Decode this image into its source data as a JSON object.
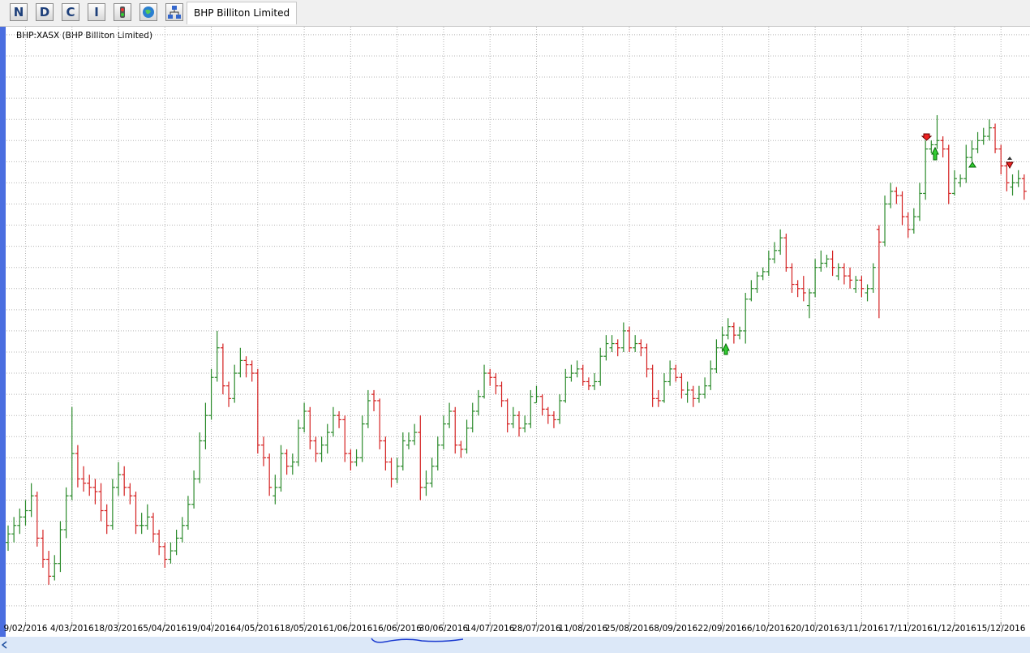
{
  "toolbar": {
    "buttons": [
      "N",
      "D",
      "C",
      "I"
    ],
    "tab": "BHP Billiton Limited"
  },
  "chart_data": {
    "type": "ohlc",
    "title": "BHP:XASX (BHP Billiton Limited)",
    "up_color": "#2a8a2a",
    "down_color": "#d42020",
    "grid": true,
    "ylim": [
      12.96,
      27.19
    ],
    "ygrid": [
      13.5,
      14,
      14.5,
      15,
      15.5,
      16,
      16.5,
      17,
      17.5,
      18,
      18.5,
      19,
      19.5,
      20,
      20.5,
      21,
      21.5,
      22,
      22.5,
      23,
      23.5,
      24,
      24.5,
      25,
      25.5,
      26,
      26.5,
      27
    ],
    "categories": [
      null,
      null,
      null,
      "9/02/2016",
      null,
      null,
      null,
      null,
      null,
      null,
      null,
      "4/03/2016",
      null,
      null,
      null,
      null,
      null,
      null,
      null,
      "18/03/2016",
      null,
      null,
      null,
      null,
      null,
      null,
      null,
      "5/04/2016",
      null,
      null,
      null,
      null,
      null,
      null,
      null,
      "19/04/2016",
      null,
      null,
      null,
      null,
      null,
      null,
      null,
      "4/05/2016",
      null,
      null,
      null,
      null,
      null,
      null,
      null,
      "18/05/2016",
      null,
      null,
      null,
      null,
      null,
      null,
      null,
      "1/06/2016",
      null,
      null,
      null,
      null,
      null,
      null,
      null,
      "16/06/2016",
      null,
      null,
      null,
      null,
      null,
      null,
      null,
      "30/06/2016",
      null,
      null,
      null,
      null,
      null,
      null,
      null,
      "14/07/2016",
      null,
      null,
      null,
      null,
      null,
      null,
      null,
      "28/07/2016",
      null,
      null,
      null,
      null,
      null,
      null,
      null,
      "11/08/2016",
      null,
      null,
      null,
      null,
      null,
      null,
      null,
      "25/08/2016",
      null,
      null,
      null,
      null,
      null,
      null,
      null,
      "8/09/2016",
      null,
      null,
      null,
      null,
      null,
      null,
      null,
      "22/09/2016",
      null,
      null,
      null,
      null,
      null,
      null,
      null,
      "6/10/2016",
      null,
      null,
      null,
      null,
      null,
      null,
      null,
      "20/10/2016",
      null,
      null,
      null,
      null,
      null,
      null,
      null,
      "3/11/2016",
      null,
      null,
      null,
      null,
      null,
      null,
      null,
      "17/11/2016",
      null,
      null,
      null,
      null,
      null,
      null,
      null,
      "1/12/2016",
      null,
      null,
      null,
      null,
      null,
      null,
      null,
      "15/12/2016",
      null,
      null,
      null,
      null
    ],
    "values": [
      [
        15.0,
        15.4,
        14.8,
        15.2
      ],
      [
        15.2,
        15.6,
        15.0,
        15.4
      ],
      [
        15.4,
        15.8,
        15.2,
        15.6
      ],
      [
        15.6,
        16.0,
        15.4,
        15.75
      ],
      [
        15.75,
        16.4,
        15.6,
        16.1
      ],
      [
        16.1,
        16.2,
        14.9,
        15.1
      ],
      [
        15.1,
        15.3,
        14.4,
        14.6
      ],
      [
        14.6,
        14.8,
        14.0,
        14.2
      ],
      [
        14.2,
        14.7,
        14.1,
        14.5
      ],
      [
        14.5,
        15.5,
        14.3,
        15.3
      ],
      [
        15.3,
        16.3,
        15.1,
        16.1
      ],
      [
        16.1,
        18.2,
        16.0,
        17.1
      ],
      [
        17.1,
        17.3,
        16.3,
        16.5
      ],
      [
        16.5,
        16.8,
        16.2,
        16.4
      ],
      [
        16.4,
        16.6,
        16.1,
        16.3
      ],
      [
        16.3,
        16.5,
        15.9,
        16.2
      ],
      [
        16.2,
        16.4,
        15.5,
        15.75
      ],
      [
        15.75,
        15.9,
        15.2,
        15.4
      ],
      [
        15.4,
        16.5,
        15.3,
        16.3
      ],
      [
        16.3,
        16.9,
        16.1,
        16.6
      ],
      [
        16.6,
        16.8,
        16.1,
        16.3
      ],
      [
        16.3,
        16.4,
        15.9,
        16.1
      ],
      [
        16.1,
        16.2,
        15.2,
        15.4
      ],
      [
        15.4,
        15.7,
        15.2,
        15.4
      ],
      [
        15.4,
        15.9,
        15.3,
        15.6
      ],
      [
        15.6,
        15.7,
        15.0,
        15.2
      ],
      [
        15.2,
        15.3,
        14.7,
        14.9
      ],
      [
        14.9,
        15.0,
        14.4,
        14.6
      ],
      [
        14.6,
        15.0,
        14.5,
        14.8
      ],
      [
        14.8,
        15.3,
        14.7,
        15.1
      ],
      [
        15.1,
        15.6,
        15.0,
        15.4
      ],
      [
        15.4,
        16.1,
        15.3,
        15.9
      ],
      [
        15.9,
        16.7,
        15.8,
        16.5
      ],
      [
        16.5,
        17.6,
        16.4,
        17.4
      ],
      [
        17.4,
        18.3,
        17.2,
        18.0
      ],
      [
        18.0,
        19.1,
        17.9,
        18.9
      ],
      [
        18.9,
        20.0,
        18.8,
        19.6
      ],
      [
        19.6,
        19.7,
        18.5,
        18.7
      ],
      [
        18.7,
        18.8,
        18.2,
        18.4
      ],
      [
        18.4,
        19.2,
        18.3,
        19.0
      ],
      [
        19.0,
        19.6,
        18.9,
        19.3
      ],
      [
        19.3,
        19.4,
        18.9,
        19.2
      ],
      [
        19.2,
        19.3,
        18.8,
        19.0
      ],
      [
        19.0,
        19.1,
        17.1,
        17.3
      ],
      [
        17.3,
        17.5,
        16.8,
        17.0
      ],
      [
        17.0,
        17.1,
        16.1,
        16.3
      ],
      [
        16.1,
        16.6,
        15.9,
        16.3
      ],
      [
        16.3,
        17.3,
        16.2,
        17.1
      ],
      [
        17.1,
        17.2,
        16.6,
        16.8
      ],
      [
        16.8,
        17.1,
        16.6,
        16.9
      ],
      [
        16.9,
        17.9,
        16.8,
        17.7
      ],
      [
        17.7,
        18.3,
        17.6,
        18.1
      ],
      [
        18.1,
        18.2,
        17.2,
        17.4
      ],
      [
        17.4,
        17.5,
        16.9,
        17.1
      ],
      [
        17.1,
        17.5,
        16.9,
        17.3
      ],
      [
        17.3,
        17.8,
        17.1,
        17.6
      ],
      [
        17.6,
        18.2,
        17.5,
        18.0
      ],
      [
        18.0,
        18.1,
        17.7,
        17.9
      ],
      [
        17.9,
        18.0,
        16.9,
        17.1
      ],
      [
        17.1,
        17.2,
        16.7,
        16.9
      ],
      [
        16.9,
        17.2,
        16.8,
        17.0
      ],
      [
        17.0,
        18.0,
        16.9,
        17.8
      ],
      [
        17.8,
        18.6,
        17.7,
        18.35
      ],
      [
        18.5,
        18.6,
        18.1,
        18.35
      ],
      [
        18.35,
        18.4,
        17.2,
        17.4
      ],
      [
        17.4,
        17.5,
        16.7,
        16.9
      ],
      [
        16.9,
        17.0,
        16.3,
        16.5
      ],
      [
        16.5,
        17.0,
        16.4,
        16.8
      ],
      [
        16.8,
        17.6,
        16.7,
        17.4
      ],
      [
        17.3,
        17.6,
        17.2,
        17.4
      ],
      [
        17.4,
        17.8,
        17.3,
        17.6
      ],
      [
        17.6,
        18.0,
        16.0,
        16.3
      ],
      [
        16.3,
        16.7,
        16.1,
        16.4
      ],
      [
        16.4,
        17.0,
        16.3,
        16.8
      ],
      [
        16.8,
        17.5,
        16.7,
        17.3
      ],
      [
        17.3,
        18.0,
        17.2,
        17.8
      ],
      [
        17.8,
        18.3,
        17.7,
        18.1
      ],
      [
        18.1,
        18.2,
        17.1,
        17.3
      ],
      [
        17.3,
        17.4,
        17.0,
        17.2
      ],
      [
        17.2,
        17.9,
        17.1,
        17.7
      ],
      [
        17.7,
        18.3,
        17.6,
        18.1
      ],
      [
        18.1,
        18.6,
        18.0,
        18.45
      ],
      [
        18.45,
        19.2,
        18.4,
        19.0
      ],
      [
        19.0,
        19.1,
        18.7,
        18.9
      ],
      [
        18.9,
        19.0,
        18.5,
        18.7
      ],
      [
        18.7,
        18.8,
        18.2,
        18.35
      ],
      [
        18.35,
        18.4,
        17.6,
        17.8
      ],
      [
        17.8,
        18.2,
        17.7,
        18.0
      ],
      [
        18.0,
        18.1,
        17.5,
        17.7
      ],
      [
        17.7,
        18.0,
        17.6,
        17.8
      ],
      [
        17.8,
        18.6,
        17.7,
        18.45
      ],
      [
        18.3,
        18.7,
        18.3,
        18.45
      ],
      [
        18.45,
        18.5,
        18.0,
        18.15
      ],
      [
        18.15,
        18.2,
        17.8,
        18.0
      ],
      [
        18.0,
        18.1,
        17.7,
        17.9
      ],
      [
        17.9,
        18.5,
        17.8,
        18.35
      ],
      [
        18.35,
        19.1,
        18.3,
        18.9
      ],
      [
        18.9,
        19.2,
        18.8,
        19.0
      ],
      [
        19.0,
        19.3,
        18.9,
        19.1
      ],
      [
        19.1,
        19.2,
        18.7,
        18.8
      ],
      [
        18.8,
        18.9,
        18.6,
        18.7
      ],
      [
        18.7,
        19.0,
        18.6,
        18.8
      ],
      [
        18.8,
        19.6,
        18.7,
        19.4
      ],
      [
        19.4,
        19.9,
        19.3,
        19.7
      ],
      [
        19.6,
        19.9,
        19.5,
        19.7
      ],
      [
        19.7,
        19.8,
        19.4,
        19.6
      ],
      [
        19.6,
        20.2,
        19.5,
        20.0
      ],
      [
        20.0,
        20.1,
        19.5,
        19.6
      ],
      [
        19.6,
        19.9,
        19.5,
        19.7
      ],
      [
        19.7,
        19.8,
        19.4,
        19.6
      ],
      [
        19.6,
        19.7,
        18.9,
        19.1
      ],
      [
        19.1,
        19.2,
        18.2,
        18.4
      ],
      [
        18.4,
        18.6,
        18.2,
        18.35
      ],
      [
        18.35,
        19.0,
        18.3,
        18.8
      ],
      [
        18.8,
        19.3,
        18.7,
        19.1
      ],
      [
        19.1,
        19.2,
        18.8,
        18.9
      ],
      [
        18.9,
        19.0,
        18.4,
        18.6
      ],
      [
        18.5,
        18.8,
        18.3,
        18.6
      ],
      [
        18.6,
        18.7,
        18.2,
        18.4
      ],
      [
        18.4,
        18.7,
        18.3,
        18.5
      ],
      [
        18.5,
        18.9,
        18.4,
        18.7
      ],
      [
        18.7,
        19.3,
        18.6,
        19.1
      ],
      [
        19.1,
        19.8,
        19.0,
        19.6
      ],
      [
        19.6,
        20.1,
        19.5,
        19.9
      ],
      [
        19.9,
        20.3,
        19.8,
        20.1
      ],
      [
        20.1,
        20.2,
        19.7,
        19.9
      ],
      [
        19.9,
        20.1,
        19.8,
        20.0
      ],
      [
        20.0,
        20.9,
        19.7,
        20.75
      ],
      [
        20.75,
        21.2,
        20.7,
        21.0
      ],
      [
        21.0,
        21.4,
        20.9,
        21.3
      ],
      [
        21.3,
        21.5,
        21.2,
        21.4
      ],
      [
        21.4,
        21.9,
        21.3,
        21.7
      ],
      [
        21.7,
        22.1,
        21.6,
        21.9
      ],
      [
        21.9,
        22.4,
        21.8,
        22.2
      ],
      [
        22.2,
        22.3,
        21.4,
        21.5
      ],
      [
        21.5,
        21.6,
        20.9,
        21.1
      ],
      [
        21.1,
        21.2,
        20.8,
        21.0
      ],
      [
        21.0,
        21.3,
        20.7,
        20.9
      ],
      [
        20.6,
        21.0,
        20.3,
        20.9
      ],
      [
        20.9,
        21.7,
        20.8,
        21.5
      ],
      [
        21.5,
        21.9,
        21.4,
        21.6
      ],
      [
        21.6,
        21.8,
        21.5,
        21.7
      ],
      [
        21.7,
        21.9,
        21.3,
        21.5
      ],
      [
        21.3,
        21.6,
        21.2,
        21.5
      ],
      [
        21.5,
        21.6,
        21.1,
        21.3
      ],
      [
        21.3,
        21.5,
        21.0,
        21.2
      ],
      [
        21.0,
        21.3,
        20.9,
        21.2
      ],
      [
        21.2,
        21.3,
        20.8,
        21.0
      ],
      [
        20.9,
        21.1,
        20.7,
        21.0
      ],
      [
        21.0,
        21.6,
        20.9,
        21.5
      ],
      [
        22.4,
        22.5,
        20.3,
        22.1
      ],
      [
        22.1,
        23.2,
        22.0,
        23.0
      ],
      [
        23.0,
        23.5,
        22.9,
        23.3
      ],
      [
        23.3,
        23.4,
        23.0,
        23.2
      ],
      [
        23.2,
        23.3,
        22.5,
        22.7
      ],
      [
        22.7,
        22.8,
        22.2,
        22.4
      ],
      [
        22.4,
        22.9,
        22.3,
        22.7
      ],
      [
        22.7,
        23.5,
        22.6,
        23.25
      ],
      [
        23.25,
        24.5,
        23.1,
        24.3
      ],
      [
        24.3,
        24.5,
        24.2,
        24.4
      ],
      [
        24.4,
        25.1,
        24.3,
        24.5
      ],
      [
        24.5,
        24.6,
        24.1,
        24.3
      ],
      [
        24.3,
        24.4,
        23.0,
        23.25
      ],
      [
        23.25,
        23.8,
        23.2,
        23.6
      ],
      [
        23.5,
        23.7,
        23.4,
        23.6
      ],
      [
        23.6,
        24.4,
        23.5,
        24.1
      ],
      [
        24.1,
        24.5,
        24.0,
        24.3
      ],
      [
        24.3,
        24.7,
        24.2,
        24.5
      ],
      [
        24.5,
        24.8,
        24.4,
        24.6
      ],
      [
        24.6,
        25.0,
        24.5,
        24.8
      ],
      [
        24.8,
        24.9,
        24.2,
        24.3
      ],
      [
        24.3,
        24.4,
        23.7,
        23.9
      ],
      [
        23.9,
        24.0,
        23.3,
        23.5
      ],
      [
        23.4,
        23.7,
        23.2,
        23.5
      ],
      [
        23.5,
        23.8,
        23.4,
        23.6
      ],
      [
        23.6,
        23.7,
        23.1,
        23.3
      ]
    ]
  }
}
